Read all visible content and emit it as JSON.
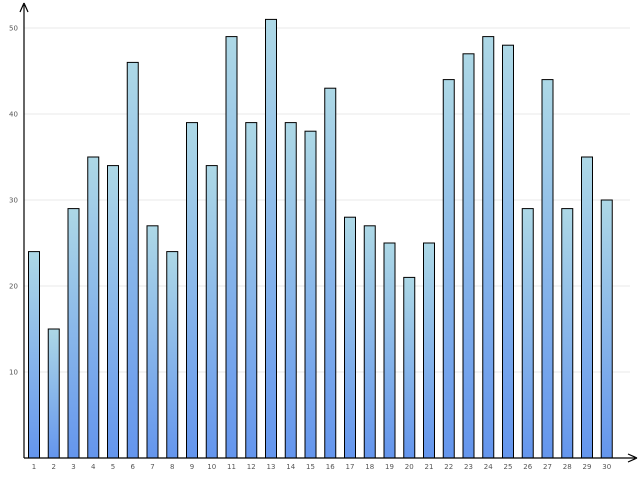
{
  "chart_data": {
    "type": "bar",
    "title": "",
    "xlabel": "",
    "ylabel": "",
    "categories": [
      "1",
      "2",
      "3",
      "4",
      "5",
      "6",
      "7",
      "8",
      "9",
      "10",
      "11",
      "12",
      "13",
      "14",
      "15",
      "16",
      "17",
      "18",
      "19",
      "20",
      "21",
      "22",
      "23",
      "24",
      "25",
      "26",
      "27",
      "28",
      "29",
      "30"
    ],
    "values": [
      24,
      15,
      29,
      35,
      34,
      46,
      27,
      24,
      39,
      34,
      49,
      39,
      51,
      39,
      38,
      43,
      28,
      27,
      25,
      21,
      25,
      44,
      47,
      49,
      48,
      29,
      44,
      29,
      35,
      30
    ],
    "ylim": [
      0,
      53
    ],
    "yticks": [
      10,
      20,
      30,
      40,
      50
    ],
    "grid": true,
    "legend": false,
    "colors": {
      "bar_top": "#add8e6",
      "bar_bottom": "#6495ed",
      "bar_stroke": "#000000",
      "grid": "#e0e0e0",
      "axis": "#000000"
    }
  }
}
